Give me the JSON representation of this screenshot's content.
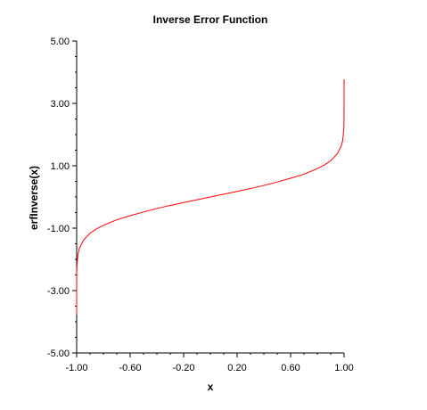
{
  "chart_data": {
    "type": "line",
    "title": "Inverse Error Function",
    "xlabel": "x",
    "ylabel": "erfInverse(x)",
    "xlim": [
      -1.0,
      1.0
    ],
    "ylim": [
      -5.0,
      5.0
    ],
    "x_ticks_labeled": [
      "-1.00",
      "-0.60",
      "-0.20",
      "0.20",
      "0.60",
      "1.00"
    ],
    "x_tick_values_labeled": [
      -1.0,
      -0.6,
      -0.2,
      0.2,
      0.6,
      1.0
    ],
    "x_minor_tick_step": 0.1,
    "y_ticks_labeled": [
      "5.00",
      "3.00",
      "1.00",
      "-1.00",
      "-3.00",
      "-5.00"
    ],
    "y_tick_values_labeled": [
      5.0,
      3.0,
      1.0,
      -1.0,
      -3.0,
      -5.0
    ],
    "y_minor_tick_step": 0.5,
    "grid": false,
    "legend": "none",
    "series": [
      {
        "color": "#ff0000",
        "x": [
          -0.9999999,
          -0.99999,
          -0.9995,
          -0.998,
          -0.99,
          -0.98,
          -0.95,
          -0.9,
          -0.85,
          -0.8,
          -0.7,
          -0.6,
          -0.5,
          -0.4,
          -0.3,
          -0.2,
          -0.1,
          0.0,
          0.1,
          0.2,
          0.3,
          0.4,
          0.5,
          0.6,
          0.7,
          0.8,
          0.85,
          0.9,
          0.95,
          0.98,
          0.99,
          0.998,
          0.9995,
          0.99999,
          0.9999999
        ],
        "y": [
          -3.77,
          -3.12,
          -2.46,
          -2.19,
          -1.82,
          -1.65,
          -1.39,
          -1.16,
          -1.02,
          -0.91,
          -0.73,
          -0.6,
          -0.48,
          -0.37,
          -0.27,
          -0.18,
          -0.09,
          0.0,
          0.09,
          0.18,
          0.27,
          0.37,
          0.48,
          0.6,
          0.73,
          0.91,
          1.02,
          1.16,
          1.39,
          1.65,
          1.82,
          2.19,
          2.46,
          3.12,
          3.77
        ]
      }
    ]
  }
}
